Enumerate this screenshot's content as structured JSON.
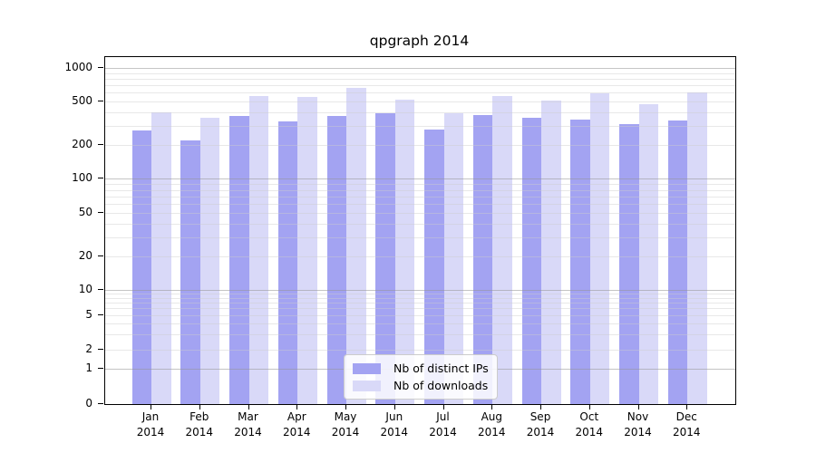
{
  "title": "qpgraph 2014",
  "legend": {
    "items": [
      {
        "label": "Nb of distinct IPs",
        "color": "#a3a3f2"
      },
      {
        "label": "Nb of downloads",
        "color": "#d9d9f8"
      }
    ]
  },
  "chart_data": {
    "type": "bar",
    "title": "qpgraph 2014",
    "categories": [
      "Jan 2014",
      "Feb 2014",
      "Mar 2014",
      "Apr 2014",
      "May 2014",
      "Jun 2014",
      "Jul 2014",
      "Aug 2014",
      "Sep 2014",
      "Oct 2014",
      "Nov 2014",
      "Dec 2014"
    ],
    "month_labels": [
      "Jan",
      "Feb",
      "Mar",
      "Apr",
      "May",
      "Jun",
      "Jul",
      "Aug",
      "Sep",
      "Oct",
      "Nov",
      "Dec"
    ],
    "year_label": "2014",
    "series": [
      {
        "name": "Nb of distinct IPs",
        "color": "#a3a3f2",
        "values": [
          270,
          220,
          365,
          325,
          368,
          390,
          275,
          375,
          350,
          340,
          310,
          335
        ]
      },
      {
        "name": "Nb of downloads",
        "color": "#d9d9f8",
        "values": [
          395,
          350,
          560,
          545,
          660,
          515,
          390,
          555,
          505,
          595,
          470,
          605
        ]
      }
    ],
    "yscale": "symlog",
    "ytick_labels": [
      "0",
      "1",
      "2",
      "5",
      "10",
      "20",
      "50",
      "100",
      "200",
      "500",
      "1000"
    ],
    "yticks": [
      0,
      1,
      2,
      5,
      10,
      20,
      50,
      100,
      200,
      500,
      1000
    ],
    "minor_gridlines": [
      3,
      4,
      6,
      7,
      8,
      9,
      30,
      40,
      60,
      70,
      80,
      90,
      300,
      400,
      600,
      700,
      800,
      900
    ],
    "ylim": [
      0,
      1300
    ],
    "grid": true,
    "legend_position": "lower center"
  },
  "colors": {
    "bar_dark": "#a3a3f2",
    "bar_light": "#d9d9f8",
    "grid_minor": "#e6e6e6",
    "grid_major": "#c9c9c9",
    "axis": "#000000",
    "background": "#ffffff"
  }
}
